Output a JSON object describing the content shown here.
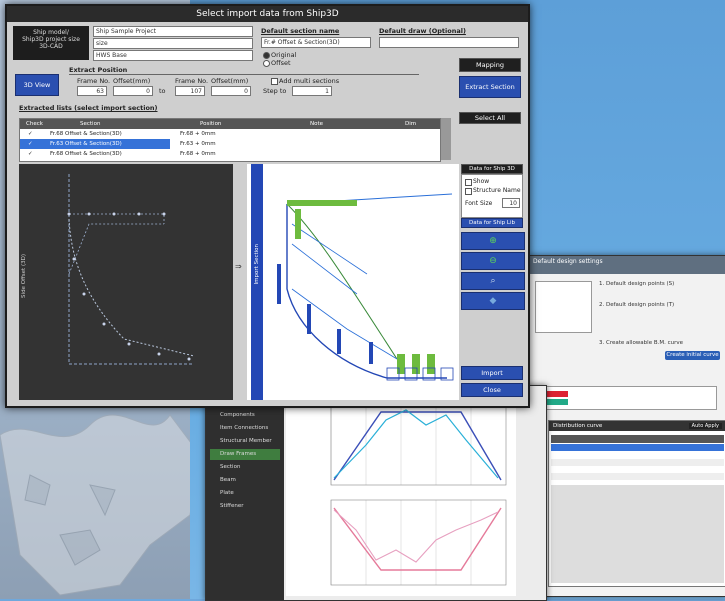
{
  "main": {
    "title": "Select import data from Ship3D",
    "project_info": {
      "label_lines": [
        "Ship model/",
        "Ship3D project size",
        "3D-CAD"
      ],
      "values": [
        "Ship Sample Project",
        "size",
        "HWS Base"
      ]
    },
    "default_section_name": {
      "label": "Default section name",
      "value": "Fr.# Offset & Section(3D)",
      "radio_original": "Original",
      "radio_offset": "Offset"
    },
    "default_draw": {
      "label": "Default draw (Optional)",
      "value": ""
    },
    "mapping_button": "Mapping",
    "extract_section_button": "Extract Section",
    "view_3d_button": "3D View",
    "extract_position": {
      "label": "Extract Position",
      "frame_no_label": "Frame No.",
      "offset_label": "Offset(mm)",
      "frame_no_value": "63",
      "offset_value": "0",
      "to_label": "to",
      "frame_no2_value": "107",
      "offset2_value": "0",
      "add_multi_sections": "Add multi sections",
      "step_label": "Step to",
      "step_value": "1"
    },
    "extracted_list": {
      "label": "Extracted lists (select import section)",
      "columns": [
        "Check",
        "Section",
        "Position",
        "Note",
        "Dim"
      ],
      "rows": [
        {
          "check": "✓",
          "section": "Fr.68 Offset & Section(3D)",
          "position": "Fr.68 + 0mm",
          "selected": false
        },
        {
          "check": "✓",
          "section": "Fr.63 Offset & Section(3D)",
          "position": "Fr.63 + 0mm",
          "selected": true
        },
        {
          "check": "✓",
          "section": "Fr.68 Offset & Section(3D)",
          "position": "Fr.68 + 0mm",
          "selected": false
        }
      ]
    },
    "select_all_button": "Select All",
    "display_options": {
      "label": "Data for Ship 3D",
      "show_label": "Show",
      "structure_name_label": "Structure Name",
      "font_size_label": "Font Size",
      "font_size_value": "10",
      "data_for_ship_label": "Data for Ship Lib"
    },
    "import_button": "Import",
    "close_button": "Close",
    "left_view_label": "Side Offset (3D)",
    "right_view_label": "Import Section"
  },
  "middle_window": {
    "sidebar_items": [
      "Components",
      "Item Connections",
      "Structural Member Section",
      "Draw Frames",
      "Section",
      "Beam",
      "Plate",
      "Stiffener"
    ]
  },
  "back_window": {
    "header": "Default design settings",
    "text_a": "1. Default design points (S)",
    "text_b": "2. Default design points (T)",
    "text_c": "3. Create allowable B.M. curve",
    "button": "Create initial curve",
    "list_title": "Distribution curve",
    "refresh_button": "Auto Apply"
  },
  "colors": {
    "accent_blue": "#2a4fb0",
    "title_bar": "#2b2b2b",
    "selected_row": "#3572d8"
  }
}
